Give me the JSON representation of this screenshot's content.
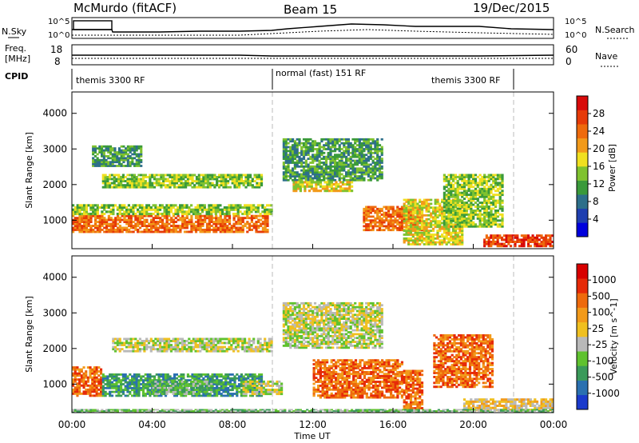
{
  "header": {
    "radar": "McMurdo (fitACF)",
    "beam": "Beam 15",
    "date": "19/Dec/2015"
  },
  "param_panel": {
    "left_labels": [
      "N.Sky",
      "Freq.",
      "[MHz]",
      "CPID"
    ],
    "right_labels": [
      "N.Search",
      "Nave"
    ],
    "left_ticks_top": [
      "10^5",
      "10^0"
    ],
    "right_ticks_top": [
      "10^5",
      "10^0"
    ],
    "left_ticks_freq": [
      "18",
      "8"
    ],
    "right_ticks_nave": [
      "60",
      "0"
    ],
    "cpid_labels": [
      "themis 3300 RF",
      "normal (fast) 151 RF",
      "themis 3300 RF"
    ]
  },
  "chart_data": [
    {
      "type": "heatmap",
      "name": "Power",
      "ylabel": "Slant Range [km]",
      "xlabel": "",
      "x_range_hours": [
        0,
        24
      ],
      "ylim_km": [
        200,
        4600
      ],
      "y_ticks": [
        "1000",
        "2000",
        "3000",
        "4000"
      ],
      "colorbar": {
        "label": "Power [dB]",
        "ticks": [
          "4",
          "8",
          "12",
          "16",
          "20",
          "24",
          "28"
        ],
        "colors": [
          "#0000dd",
          "#1f3fb0",
          "#2d6f8a",
          "#3a9a3a",
          "#7fc22f",
          "#f0e020",
          "#f29a1a",
          "#ee6a0c",
          "#e63a08",
          "#d80a0a"
        ]
      },
      "echo_regions": [
        {
          "t0": 0.0,
          "t1": 9.8,
          "r0": 650,
          "r1": 1150,
          "level": 7
        },
        {
          "t0": 0.0,
          "t1": 10.0,
          "r0": 1150,
          "r1": 1450,
          "level": 4
        },
        {
          "t0": 1.5,
          "t1": 9.5,
          "r0": 1900,
          "r1": 2300,
          "level": 4
        },
        {
          "t0": 1.0,
          "t1": 3.5,
          "r0": 2500,
          "r1": 3100,
          "level": 3
        },
        {
          "t0": 10.5,
          "t1": 15.5,
          "r0": 2100,
          "r1": 3300,
          "level": 3
        },
        {
          "t0": 14.5,
          "t1": 17.5,
          "r0": 700,
          "r1": 1400,
          "level": 7
        },
        {
          "t0": 16.5,
          "t1": 19.5,
          "r0": 300,
          "r1": 1600,
          "level": 5
        },
        {
          "t0": 18.5,
          "t1": 21.5,
          "r0": 800,
          "r1": 2300,
          "level": 4
        },
        {
          "t0": 20.5,
          "t1": 24.0,
          "r0": 250,
          "r1": 600,
          "level": 8
        },
        {
          "t0": 11.0,
          "t1": 14.0,
          "r0": 1800,
          "r1": 2100,
          "level": 5
        }
      ]
    },
    {
      "type": "heatmap",
      "name": "Velocity",
      "ylabel": "Slant Range [km]",
      "xlabel": "Time UT",
      "x_range_hours": [
        0,
        24
      ],
      "x_ticks": [
        "00:00",
        "04:00",
        "08:00",
        "12:00",
        "16:00",
        "20:00",
        "00:00"
      ],
      "ylim_km": [
        200,
        4600
      ],
      "y_ticks": [
        "1000",
        "2000",
        "3000",
        "4000"
      ],
      "colorbar": {
        "label": "Velocity [m s^-1]",
        "ticks": [
          "1000",
          "500",
          "100",
          "25",
          "-25",
          "-100",
          "-500",
          "-1000"
        ],
        "colors": [
          "#1a3acc",
          "#2a70b0",
          "#3a9a5a",
          "#5fc22f",
          "#b9b9b9",
          "#f0c020",
          "#f29a1a",
          "#ee6a0c",
          "#e62a08",
          "#d80000"
        ]
      },
      "echo_regions": [
        {
          "t0": 0.0,
          "t1": 1.5,
          "r0": 650,
          "r1": 1500,
          "level": 7
        },
        {
          "t0": 1.5,
          "t1": 9.5,
          "r0": 650,
          "r1": 1300,
          "level": 2
        },
        {
          "t0": 4.0,
          "t1": 7.0,
          "r0": 700,
          "r1": 1100,
          "level": 3
        },
        {
          "t0": 8.5,
          "t1": 10.5,
          "r0": 700,
          "r1": 1100,
          "level": 4
        },
        {
          "t0": 2.0,
          "t1": 10.0,
          "r0": 1900,
          "r1": 2300,
          "level": 4
        },
        {
          "t0": 10.5,
          "t1": 15.5,
          "r0": 2000,
          "r1": 3300,
          "level": 4
        },
        {
          "t0": 12.0,
          "t1": 16.5,
          "r0": 600,
          "r1": 1700,
          "level": 7
        },
        {
          "t0": 16.5,
          "t1": 17.5,
          "r0": 300,
          "r1": 1400,
          "level": 7
        },
        {
          "t0": 18.0,
          "t1": 21.0,
          "r0": 900,
          "r1": 2400,
          "level": 7
        },
        {
          "t0": 19.5,
          "t1": 24.0,
          "r0": 250,
          "r1": 600,
          "level": 5
        },
        {
          "t0": 0.0,
          "t1": 24.0,
          "r0": 200,
          "r1": 300,
          "level": 3
        }
      ]
    }
  ]
}
